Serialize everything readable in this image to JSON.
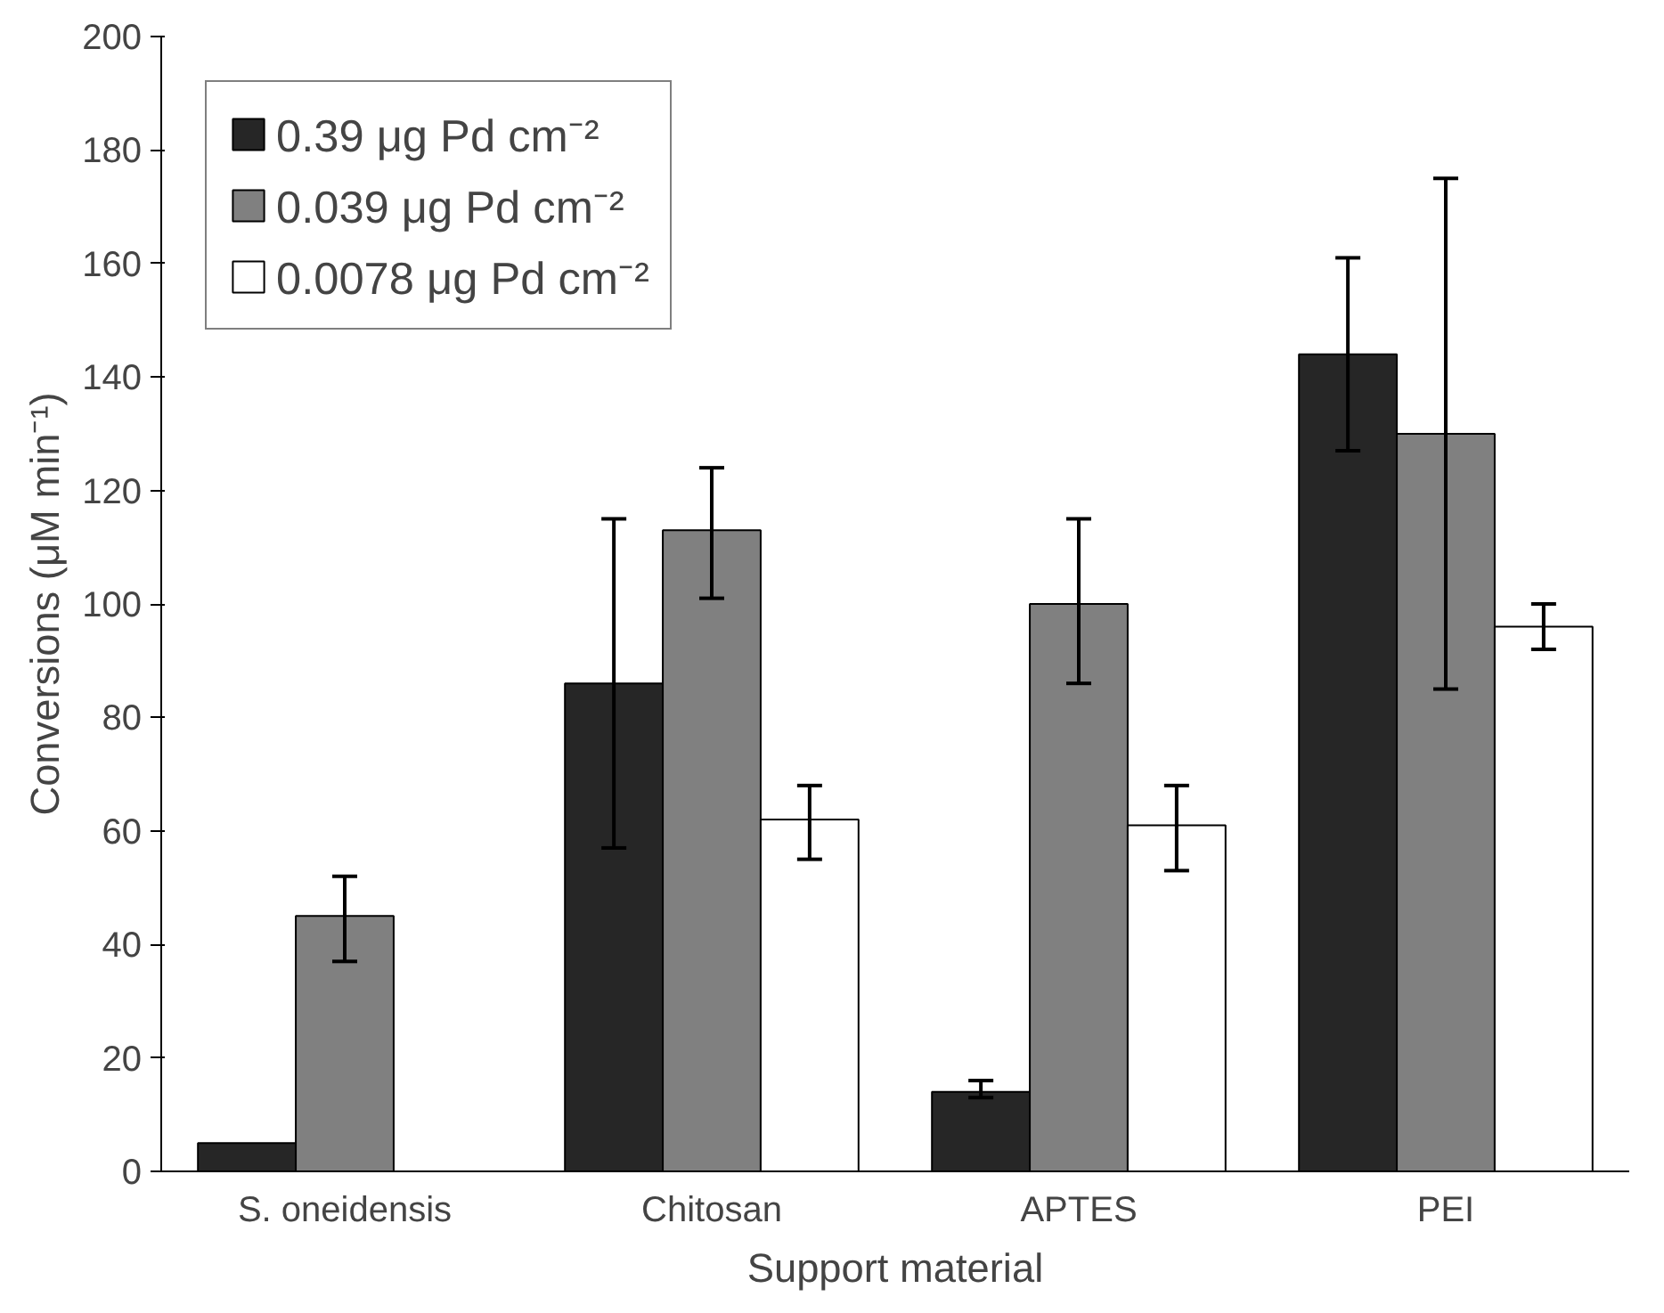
{
  "chart_data": {
    "type": "bar",
    "xlabel": "Support material",
    "ylabel": "Conversions (μM min⁻¹)",
    "categories": [
      "S. oneidensis",
      "Chitosan",
      "APTES",
      "PEI"
    ],
    "series": [
      {
        "name": "0.39 μg Pd cm⁻²",
        "color": "#262626",
        "values": [
          5,
          86,
          14,
          144
        ],
        "errors": [
          null,
          [
            57,
            115
          ],
          [
            13,
            16
          ],
          [
            127,
            161
          ]
        ]
      },
      {
        "name": "0.039 μg Pd cm⁻²",
        "color": "#808080",
        "values": [
          45,
          113,
          100,
          130
        ],
        "errors": [
          [
            37,
            52
          ],
          [
            101,
            124
          ],
          [
            86,
            115
          ],
          [
            85,
            175
          ]
        ]
      },
      {
        "name": "0.0078 μg Pd cm⁻²",
        "color": "#ffffff",
        "values": [
          null,
          62,
          61,
          96
        ],
        "errors": [
          null,
          [
            55,
            68
          ],
          [
            53,
            68
          ],
          [
            92,
            100
          ]
        ]
      }
    ],
    "ylim": [
      0,
      200
    ],
    "yticks": [
      0,
      20,
      40,
      60,
      80,
      100,
      120,
      140,
      160,
      180,
      200
    ],
    "grid": false,
    "legend": "top left"
  }
}
